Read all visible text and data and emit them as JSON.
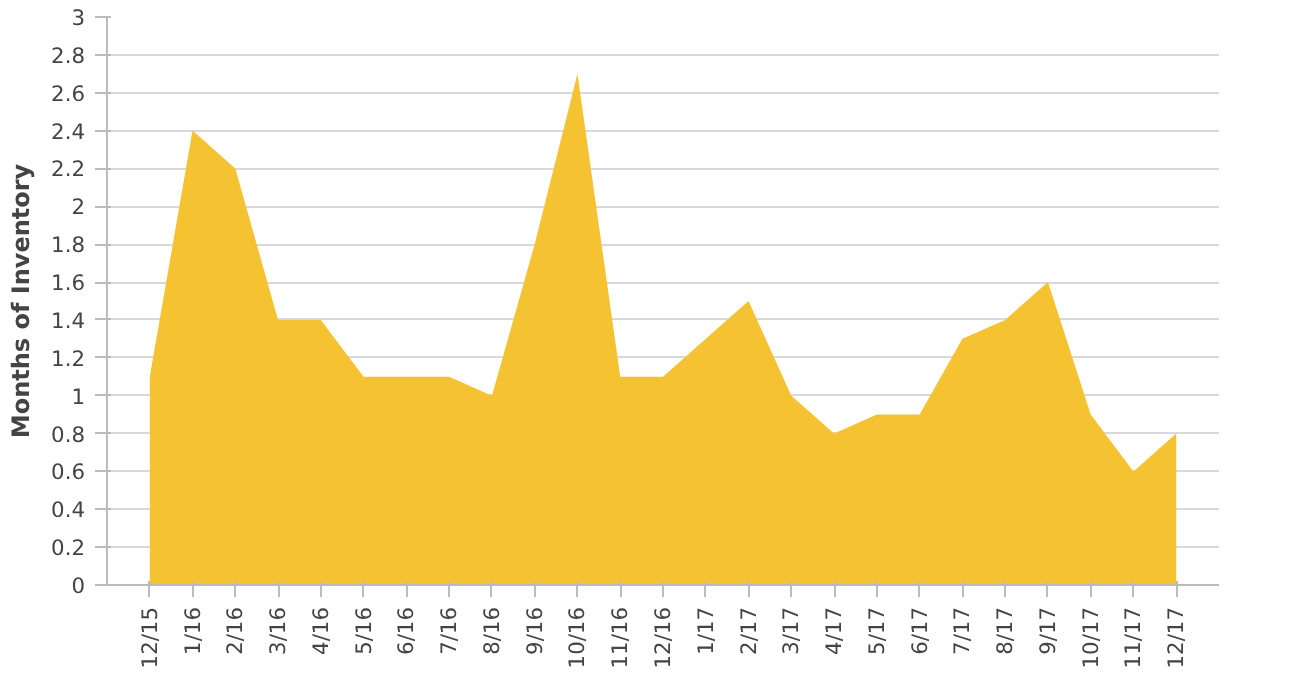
{
  "chart_data": {
    "type": "area",
    "ylabel": "Months of Inventory",
    "categories": [
      "12/15",
      "1/16",
      "2/16",
      "3/16",
      "4/16",
      "5/16",
      "6/16",
      "7/16",
      "8/16",
      "9/16",
      "10/16",
      "11/16",
      "12/16",
      "1/17",
      "2/17",
      "3/17",
      "4/17",
      "5/17",
      "6/17",
      "7/17",
      "8/17",
      "9/17",
      "10/17",
      "11/17",
      "12/17"
    ],
    "series": [
      {
        "color": "#f5c232",
        "values": [
          1.1,
          2.4,
          2.2,
          1.4,
          1.4,
          1.1,
          1.1,
          1.1,
          1.0,
          1.8,
          2.7,
          1.1,
          1.1,
          1.3,
          1.5,
          1.0,
          0.8,
          0.9,
          0.9,
          1.3,
          1.4,
          1.6,
          0.9,
          0.6,
          0.8
        ]
      }
    ],
    "ylim": [
      0,
      3
    ],
    "yticks": [
      0,
      0.2,
      0.4,
      0.6,
      0.8,
      1,
      1.2,
      1.4,
      1.6,
      1.8,
      2,
      2.2,
      2.4,
      2.6,
      2.8,
      3
    ],
    "grid": "y"
  }
}
